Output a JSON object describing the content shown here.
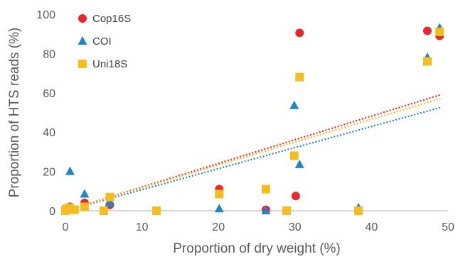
{
  "chart_data": {
    "type": "scatter",
    "title": "",
    "xlabel": "Proportion of dry weight (%)",
    "ylabel": "Proportion of HTS reads (%)",
    "xlim": [
      0,
      50
    ],
    "ylim": [
      0,
      100
    ],
    "xticks": [
      0,
      10,
      20,
      30,
      40,
      50
    ],
    "yticks": [
      0,
      20,
      40,
      60,
      80,
      100
    ],
    "grid": false,
    "legend_position": "top-left",
    "series": [
      {
        "name": "Cop16S",
        "marker": "circle",
        "color": "#e8292b",
        "points": [
          [
            0,
            1
          ],
          [
            0.3,
            1
          ],
          [
            0.6,
            2
          ],
          [
            2.5,
            4
          ],
          [
            5.8,
            3
          ],
          [
            20.1,
            11
          ],
          [
            26.2,
            0.5
          ],
          [
            30.1,
            7.5
          ],
          [
            30.6,
            90.5
          ],
          [
            47.3,
            91.5
          ],
          [
            48.9,
            89
          ]
        ],
        "trend": [
          [
            0,
            0
          ],
          [
            49,
            59
          ]
        ]
      },
      {
        "name": "COI",
        "marker": "triangle",
        "color": "#1f86c8",
        "points": [
          [
            0,
            1
          ],
          [
            0.6,
            20
          ],
          [
            2.5,
            8.5
          ],
          [
            5.8,
            4
          ],
          [
            20.1,
            1
          ],
          [
            26.2,
            0
          ],
          [
            29.9,
            53.5
          ],
          [
            30.6,
            23.5
          ],
          [
            38.3,
            1.5
          ],
          [
            47.3,
            78
          ],
          [
            48.9,
            93
          ]
        ],
        "trend": [
          [
            0,
            0
          ],
          [
            49,
            52.5
          ]
        ]
      },
      {
        "name": "Uni18S",
        "marker": "square",
        "color": "#f5bd1f",
        "points": [
          [
            0,
            0
          ],
          [
            0.2,
            1
          ],
          [
            0.5,
            1.5
          ],
          [
            1.2,
            0.5
          ],
          [
            2.5,
            2
          ],
          [
            5,
            0
          ],
          [
            5.8,
            7
          ],
          [
            11.9,
            0
          ],
          [
            20.1,
            8.5
          ],
          [
            26.2,
            11
          ],
          [
            28.9,
            0
          ],
          [
            29.9,
            28
          ],
          [
            30.6,
            68
          ],
          [
            38.3,
            0
          ],
          [
            47.3,
            76
          ],
          [
            48.9,
            91
          ]
        ],
        "trend": [
          [
            0,
            0
          ],
          [
            49,
            57
          ]
        ]
      }
    ]
  }
}
